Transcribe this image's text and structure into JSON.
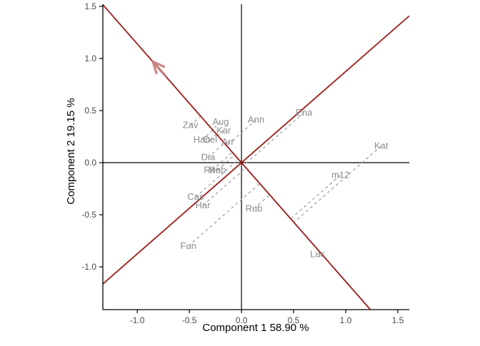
{
  "figure": {
    "background": "#ffffff"
  },
  "chart_data": {
    "type": "scatter",
    "variant": "gge-biplot-mean-vs-stability",
    "title": "",
    "xlabel": "Component 1 58.90 %",
    "ylabel": "Component 2 19.15 %",
    "xlim": [
      -1.33,
      1.61
    ],
    "ylim": [
      -1.41,
      1.52
    ],
    "xticks": [
      -1.0,
      -0.5,
      0.0,
      0.5,
      1.0,
      1.5
    ],
    "xtick_labels": [
      "-1.0",
      "-0.5",
      "0.0",
      "0.5",
      "1.0",
      "1.5"
    ],
    "yticks": [
      -1.0,
      -0.5,
      0.0,
      0.5,
      1.0,
      1.5
    ],
    "ytick_labels": [
      "-1.0",
      "-0.5",
      "0.0",
      "0.5",
      "1.0",
      "1.5"
    ],
    "grid": false,
    "origin_cross_axes": true,
    "legend": null,
    "points": [
      {
        "label": "Zav",
        "x": -0.49,
        "y": 0.36
      },
      {
        "label": "Aug",
        "x": -0.2,
        "y": 0.39
      },
      {
        "label": "Kar",
        "x": -0.17,
        "y": 0.31
      },
      {
        "label": "Han",
        "x": -0.38,
        "y": 0.22
      },
      {
        "label": "Del",
        "x": -0.3,
        "y": 0.22
      },
      {
        "label": "Arr",
        "x": -0.13,
        "y": 0.2
      },
      {
        "label": "Dia",
        "x": -0.32,
        "y": 0.05
      },
      {
        "label": "Ron",
        "x": -0.28,
        "y": -0.07
      },
      {
        "label": "Reb",
        "x": -0.23,
        "y": -0.07
      },
      {
        "label": "Ann",
        "x": 0.14,
        "y": 0.41
      },
      {
        "label": "Ena",
        "x": 0.6,
        "y": 0.48
      },
      {
        "label": "Kat",
        "x": 1.34,
        "y": 0.16
      },
      {
        "label": "m12",
        "x": 0.95,
        "y": -0.12
      },
      {
        "label": "Rub",
        "x": 0.12,
        "y": -0.44
      },
      {
        "label": "Cas",
        "x": -0.44,
        "y": -0.33
      },
      {
        "label": "Har",
        "x": -0.37,
        "y": -0.41
      },
      {
        "label": "Fun",
        "x": -0.51,
        "y": -0.8
      },
      {
        "label": "Luc",
        "x": 0.73,
        "y": -0.88
      }
    ],
    "average_env_axis": {
      "slope": -1.14,
      "arrow_tip": {
        "x": -0.85,
        "y": 0.97
      }
    },
    "ordinate_axis_slope": 0.875,
    "projection": "dashed segment from each point, parallel to the ordinate axis, onto the average-environment axis",
    "colors": {
      "biplot_axis_line": "#9a1a1a",
      "arrow": "#c98080",
      "point_label": "#8c8c8c",
      "projection_line": "#9a9a9a",
      "axis_line": "#000000",
      "tick_label": "#4a4a4a",
      "axis_title": "#000000"
    }
  }
}
